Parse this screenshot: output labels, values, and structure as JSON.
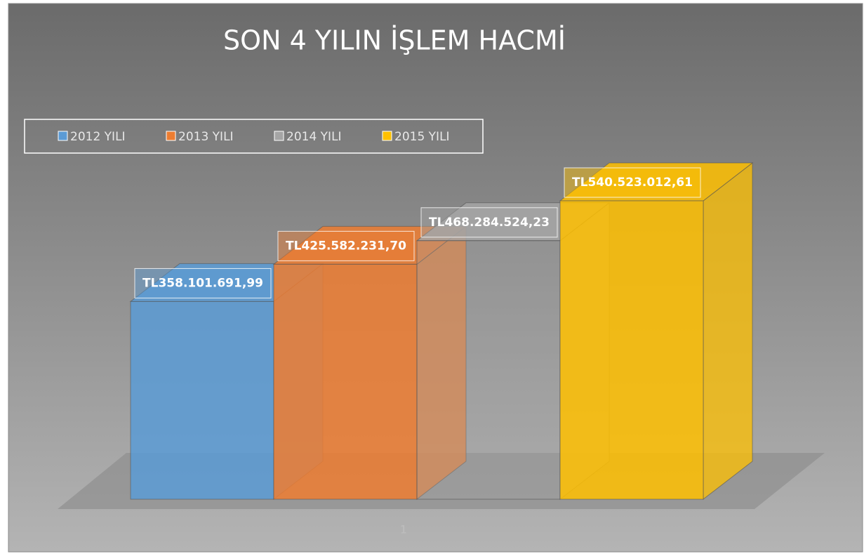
{
  "chart_data": {
    "type": "bar3d",
    "title": "SON 4 YILIN İŞLEM HACMİ",
    "categories": [
      "1"
    ],
    "series": [
      {
        "name": "2012 YILI",
        "color": "#5b9bd5",
        "values": [
          358101691.99
        ],
        "value_labels": [
          "TL358.101.691,99"
        ]
      },
      {
        "name": "2013 YILI",
        "color": "#ed7d31",
        "values": [
          425582231.7
        ],
        "value_labels": [
          "TL425.582.231,70"
        ]
      },
      {
        "name": "2014 YILI",
        "color": "#a5a5a5",
        "values": [
          468284524.23
        ],
        "value_labels": [
          "TL468.284.524,23"
        ]
      },
      {
        "name": "2015 YILI",
        "color": "#ffc000",
        "values": [
          540523012.61
        ],
        "value_labels": [
          "TL540.523.012,61"
        ]
      }
    ],
    "legend": "top-left"
  }
}
